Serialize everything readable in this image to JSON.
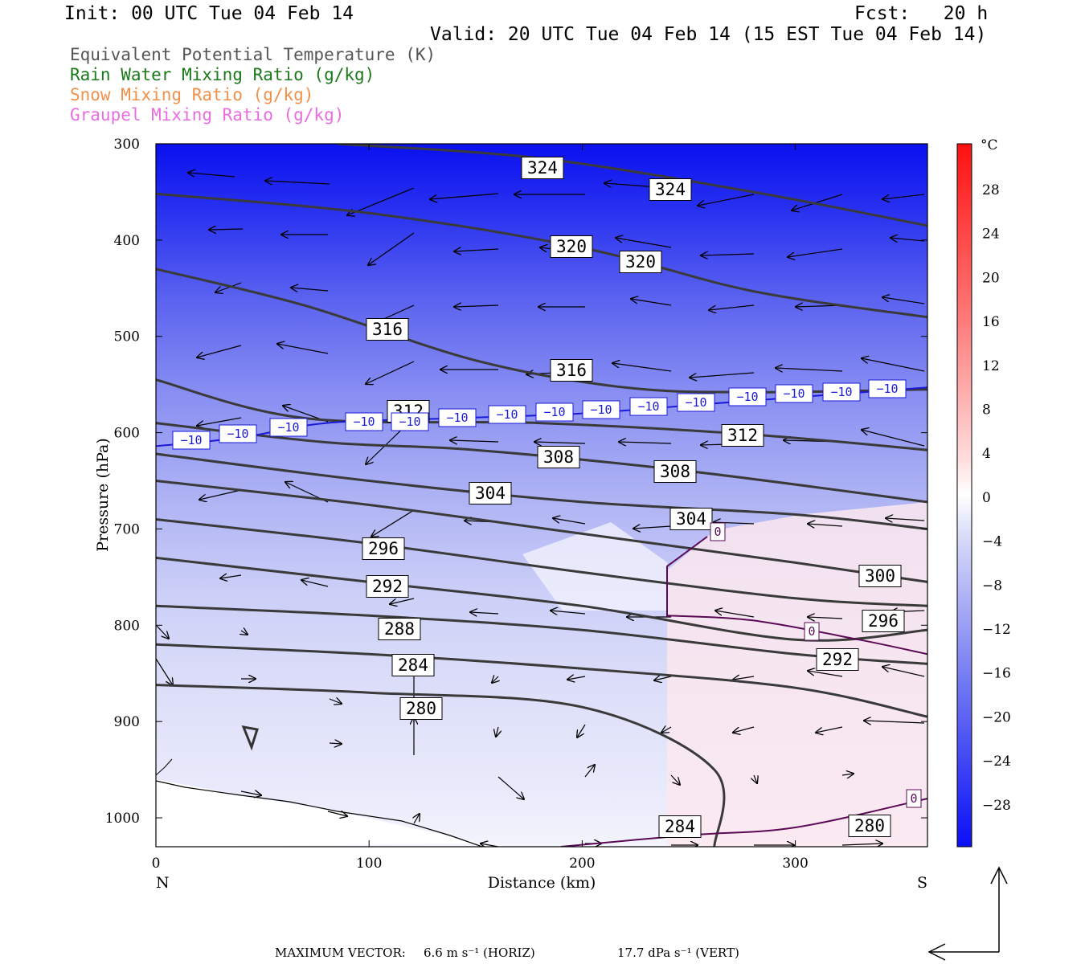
{
  "header": {
    "init": "Init: 00 UTC Tue 04 Feb 14",
    "fcst": "Fcst:   20 h",
    "valid": "Valid: 20 UTC Tue 04 Feb 14 (15 EST Tue 04 Feb 14)"
  },
  "legend": [
    {
      "text": "Equivalent Potential Temperature (K)",
      "color": "#555555"
    },
    {
      "text": "Rain Water Mixing Ratio (g/kg)",
      "color": "#1a7a1a"
    },
    {
      "text": "Snow Mixing Ratio (g/kg)",
      "color": "#f0904a"
    },
    {
      "text": "Graupel Mixing Ratio (g/kg)",
      "color": "#e86ee0"
    }
  ],
  "footer": {
    "label": "MAXIMUM VECTOR:",
    "horiz": "6.6 m s⁻¹ (HORIZ)",
    "vert": "17.7 dPa s⁻¹ (VERT)"
  },
  "chart_data": {
    "type": "cross-section",
    "xlabel": "Distance (km)",
    "ylabel": "Pressure (hPa)",
    "xlim": [
      0,
      362
    ],
    "ylim": [
      1030,
      300
    ],
    "xticks": [
      0,
      100,
      200,
      300
    ],
    "yticks": [
      300,
      400,
      500,
      600,
      700,
      800,
      900,
      1000
    ],
    "x_end_labels": {
      "left": "N",
      "right": "S"
    },
    "colorbar": {
      "unit": "°C",
      "labels": [
        28,
        24,
        20,
        16,
        12,
        8,
        4,
        0,
        -4,
        -8,
        -12,
        -16,
        -20,
        -24,
        -28
      ]
    },
    "theta_e_contours": [
      {
        "value": 324,
        "points": [
          [
            85,
            300
          ],
          [
            180,
            315
          ],
          [
            280,
            350
          ],
          [
            362,
            385
          ]
        ]
      },
      {
        "value": 320,
        "points": [
          [
            0,
            352
          ],
          [
            100,
            372
          ],
          [
            200,
            408
          ],
          [
            280,
            453
          ],
          [
            362,
            480
          ]
        ]
      },
      {
        "value": 316,
        "points": [
          [
            0,
            430
          ],
          [
            70,
            468
          ],
          [
            150,
            525
          ],
          [
            220,
            553
          ],
          [
            280,
            558
          ],
          [
            362,
            555
          ]
        ]
      },
      {
        "value": 312,
        "points": [
          [
            0,
            545
          ],
          [
            70,
            585
          ],
          [
            180,
            590
          ],
          [
            280,
            602
          ],
          [
            362,
            618
          ]
        ]
      },
      {
        "value": 308,
        "points": [
          [
            0,
            590
          ],
          [
            80,
            610
          ],
          [
            150,
            618
          ],
          [
            250,
            640
          ],
          [
            362,
            672
          ]
        ]
      },
      {
        "value": 304,
        "points": [
          [
            0,
            622
          ],
          [
            100,
            650
          ],
          [
            200,
            672
          ],
          [
            300,
            685
          ],
          [
            362,
            700
          ]
        ]
      },
      {
        "value": 300,
        "points": [
          [
            0,
            650
          ],
          [
            100,
            675
          ],
          [
            200,
            705
          ],
          [
            300,
            735
          ],
          [
            362,
            755
          ]
        ]
      },
      {
        "value": 296,
        "points": [
          [
            0,
            690
          ],
          [
            100,
            715
          ],
          [
            200,
            745
          ],
          [
            300,
            772
          ],
          [
            362,
            780
          ]
        ]
      },
      {
        "value": 292,
        "points": [
          [
            0,
            730
          ],
          [
            100,
            755
          ],
          [
            200,
            780
          ],
          [
            300,
            815
          ],
          [
            362,
            805
          ]
        ]
      },
      {
        "value": 288,
        "points": [
          [
            0,
            780
          ],
          [
            100,
            790
          ],
          [
            200,
            805
          ],
          [
            300,
            830
          ],
          [
            362,
            840
          ]
        ]
      },
      {
        "value": 284,
        "points": [
          [
            0,
            820
          ],
          [
            100,
            830
          ],
          [
            200,
            845
          ],
          [
            300,
            865
          ],
          [
            362,
            895
          ]
        ]
      },
      {
        "value": 280,
        "points": [
          [
            0,
            862
          ],
          [
            100,
            870
          ],
          [
            200,
            885
          ],
          [
            262,
            950
          ],
          [
            262,
            1030
          ]
        ]
      }
    ],
    "isotherm_minus10": {
      "value": -10,
      "points": [
        [
          0,
          614
        ],
        [
          40,
          605
        ],
        [
          80,
          590
        ],
        [
          140,
          585
        ],
        [
          200,
          580
        ],
        [
          260,
          570
        ],
        [
          320,
          560
        ],
        [
          362,
          553
        ]
      ]
    },
    "isotherm_zero": [
      {
        "value": 0,
        "points": [
          [
            240,
            790
          ],
          [
            280,
            795
          ],
          [
            330,
            815
          ],
          [
            362,
            830
          ]
        ]
      },
      {
        "value": 0,
        "points": [
          [
            190,
            1030
          ],
          [
            250,
            1018
          ],
          [
            300,
            1010
          ],
          [
            362,
            980
          ]
        ]
      }
    ],
    "annotation_labels": {
      "theta_e": [
        "324",
        "324",
        "320",
        "320",
        "316",
        "316",
        "312",
        "312",
        "308",
        "308",
        "304",
        "304",
        "300",
        "296",
        "296",
        "292",
        "292",
        "288",
        "284",
        "284",
        "280",
        "280"
      ],
      "isotherm": [
        "−10",
        "0"
      ]
    }
  }
}
